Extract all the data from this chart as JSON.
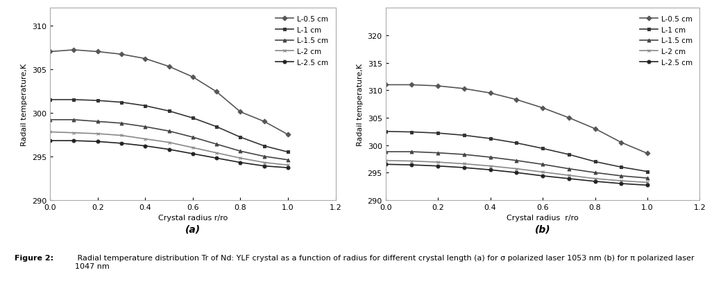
{
  "panel_a": {
    "title": "(a)",
    "xlabel": "Crystal radius r/ro",
    "ylabel": "Radail temperature,K",
    "xlim": [
      0,
      1.2
    ],
    "ylim": [
      290,
      312
    ],
    "yticks": [
      290,
      295,
      300,
      305,
      310
    ],
    "xticks": [
      0,
      0.2,
      0.4,
      0.6,
      0.8,
      1.0,
      1.2
    ],
    "series": [
      {
        "label": "L-0.5 cm",
        "x": [
          0,
          0.1,
          0.2,
          0.3,
          0.4,
          0.5,
          0.6,
          0.7,
          0.8,
          0.9,
          1.0
        ],
        "y": [
          307.0,
          307.2,
          307.0,
          306.7,
          306.2,
          305.3,
          304.1,
          302.4,
          300.1,
          299.0,
          297.5
        ],
        "marker": "D",
        "color": "#555555",
        "linewidth": 1.2
      },
      {
        "label": "L-1 cm",
        "x": [
          0,
          0.1,
          0.2,
          0.3,
          0.4,
          0.5,
          0.6,
          0.7,
          0.8,
          0.9,
          1.0
        ],
        "y": [
          301.5,
          301.5,
          301.4,
          301.2,
          300.8,
          300.2,
          299.4,
          298.4,
          297.2,
          296.2,
          295.5
        ],
        "marker": "s",
        "color": "#333333",
        "linewidth": 1.2
      },
      {
        "label": "L-1.5 cm",
        "x": [
          0,
          0.1,
          0.2,
          0.3,
          0.4,
          0.5,
          0.6,
          0.7,
          0.8,
          0.9,
          1.0
        ],
        "y": [
          299.2,
          299.2,
          299.0,
          298.8,
          298.4,
          297.9,
          297.2,
          296.4,
          295.6,
          295.0,
          294.6
        ],
        "marker": "^",
        "color": "#444444",
        "linewidth": 1.2
      },
      {
        "label": "L-2 cm",
        "x": [
          0,
          0.1,
          0.2,
          0.3,
          0.4,
          0.5,
          0.6,
          0.7,
          0.8,
          0.9,
          1.0
        ],
        "y": [
          297.8,
          297.7,
          297.6,
          297.4,
          297.0,
          296.6,
          296.0,
          295.4,
          294.8,
          294.3,
          294.0
        ],
        "marker": "x",
        "color": "#888888",
        "linewidth": 1.2
      },
      {
        "label": "L-2.5 cm",
        "x": [
          0,
          0.1,
          0.2,
          0.3,
          0.4,
          0.5,
          0.6,
          0.7,
          0.8,
          0.9,
          1.0
        ],
        "y": [
          296.8,
          296.8,
          296.7,
          296.5,
          296.2,
          295.8,
          295.3,
          294.8,
          294.3,
          293.9,
          293.7
        ],
        "marker": "o",
        "color": "#222222",
        "linewidth": 1.2
      }
    ]
  },
  "panel_b": {
    "title": "(b)",
    "xlabel": "Crystal radius  r/ro",
    "ylabel": "Radail temperature,K",
    "xlim": [
      0,
      1.2
    ],
    "ylim": [
      290,
      325
    ],
    "yticks": [
      290,
      295,
      300,
      305,
      310,
      315,
      320
    ],
    "xticks": [
      0,
      0.2,
      0.4,
      0.6,
      0.8,
      1.0,
      1.2
    ],
    "series": [
      {
        "label": "L-0.5 cm",
        "x": [
          0,
          0.1,
          0.2,
          0.3,
          0.4,
          0.5,
          0.6,
          0.7,
          0.8,
          0.9,
          1.0
        ],
        "y": [
          311.0,
          311.0,
          310.8,
          310.3,
          309.5,
          308.3,
          306.8,
          305.0,
          303.0,
          300.5,
          298.5
        ],
        "marker": "D",
        "color": "#555555",
        "linewidth": 1.2
      },
      {
        "label": "L-1 cm",
        "x": [
          0,
          0.1,
          0.2,
          0.3,
          0.4,
          0.5,
          0.6,
          0.7,
          0.8,
          0.9,
          1.0
        ],
        "y": [
          302.5,
          302.4,
          302.2,
          301.8,
          301.2,
          300.4,
          299.4,
          298.3,
          297.0,
          296.0,
          295.2
        ],
        "marker": "s",
        "color": "#333333",
        "linewidth": 1.2
      },
      {
        "label": "L-1.5 cm",
        "x": [
          0,
          0.1,
          0.2,
          0.3,
          0.4,
          0.5,
          0.6,
          0.7,
          0.8,
          0.9,
          1.0
        ],
        "y": [
          298.8,
          298.8,
          298.6,
          298.3,
          297.8,
          297.2,
          296.5,
          295.7,
          295.0,
          294.4,
          294.0
        ],
        "marker": "^",
        "color": "#444444",
        "linewidth": 1.2
      },
      {
        "label": "L-2 cm",
        "x": [
          0,
          0.1,
          0.2,
          0.3,
          0.4,
          0.5,
          0.6,
          0.7,
          0.8,
          0.9,
          1.0
        ],
        "y": [
          297.2,
          297.1,
          296.9,
          296.6,
          296.2,
          295.7,
          295.1,
          294.5,
          293.9,
          293.5,
          293.2
        ],
        "marker": "x",
        "color": "#888888",
        "linewidth": 1.2
      },
      {
        "label": "L-2.5 cm",
        "x": [
          0,
          0.1,
          0.2,
          0.3,
          0.4,
          0.5,
          0.6,
          0.7,
          0.8,
          0.9,
          1.0
        ],
        "y": [
          296.5,
          296.4,
          296.2,
          295.9,
          295.5,
          295.0,
          294.4,
          293.9,
          293.4,
          293.0,
          292.7
        ],
        "marker": "o",
        "color": "#222222",
        "linewidth": 1.2
      }
    ]
  },
  "caption_bold": "Figure 2:",
  "caption_normal": " Radial temperature distribution Tr of Nd: YLF crystal as a function of radius for different crystal length (a) for σ polarized laser 1053 nm (b) for π polarized laser 1047 nm",
  "background_color": "#ffffff",
  "text_color": "#000000"
}
